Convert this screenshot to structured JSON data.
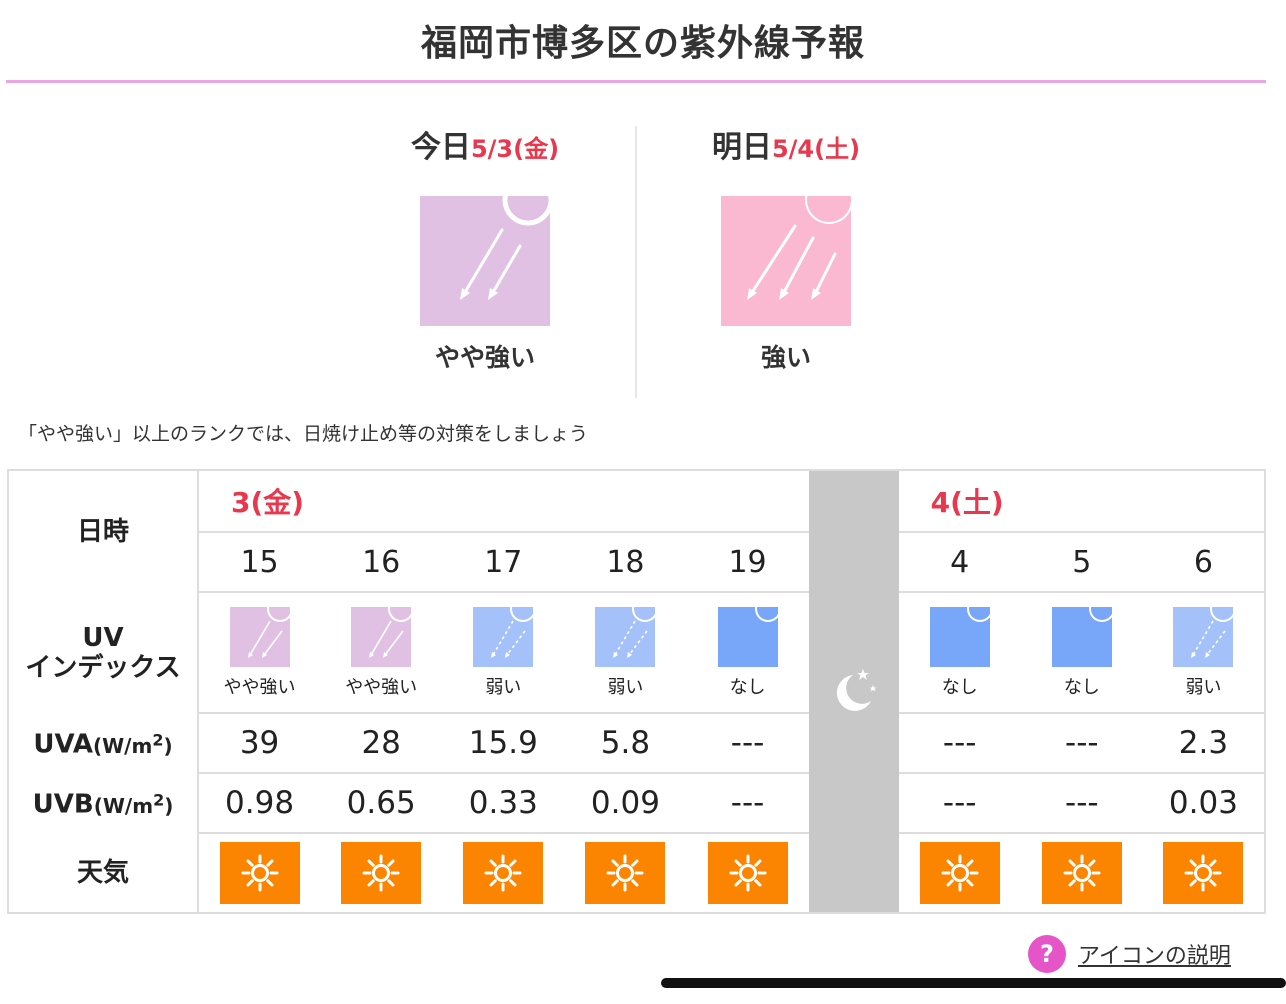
{
  "page": {
    "title": "福岡市博多区の紫外線予報"
  },
  "today": {
    "prefix": "今日",
    "date": "5/3(金)",
    "rank": "やや強い",
    "color": "#e1c1e3"
  },
  "tomorrow": {
    "prefix": "明日",
    "date": "5/4(土)",
    "rank": "強い",
    "color": "#fab8d1"
  },
  "note": "「やや強い」以上のランクでは、日焼け止め等の対策をしましょう",
  "table": {
    "labels": {
      "datetime": "日時",
      "uv_line1": "UV",
      "uv_line2": "インデックス",
      "uva": "UVA",
      "uvb": "UVB",
      "unit_open": "(W/m",
      "unit_sup": "2",
      "unit_close": ")",
      "weather": "天気"
    },
    "days": [
      "3(金)",
      "4(土)"
    ],
    "hours": [
      "15",
      "16",
      "17",
      "18",
      "19",
      "4",
      "5",
      "6"
    ],
    "uv_ranks": [
      "やや強い",
      "やや強い",
      "弱い",
      "弱い",
      "なし",
      "なし",
      "なし",
      "弱い"
    ],
    "uva": [
      "39",
      "28",
      "15.9",
      "5.8",
      "---",
      "---",
      "---",
      "2.3"
    ],
    "uvb": [
      "0.98",
      "0.65",
      "0.33",
      "0.09",
      "---",
      "---",
      "---",
      "0.03"
    ],
    "weather_icons": [
      "sunny-icon",
      "sunny-icon",
      "sunny-icon",
      "sunny-icon",
      "sunny-icon",
      "sunny-icon",
      "sunny-icon",
      "sunny-icon"
    ]
  },
  "colors": {
    "moderate": "#e1c1e3",
    "strong": "#fab8d1",
    "weak": "#a4c2f9",
    "none": "#78a7f9",
    "sunny": "#fb8500",
    "accent": "#e8384d"
  },
  "help": {
    "label": "アイコンの説明"
  }
}
